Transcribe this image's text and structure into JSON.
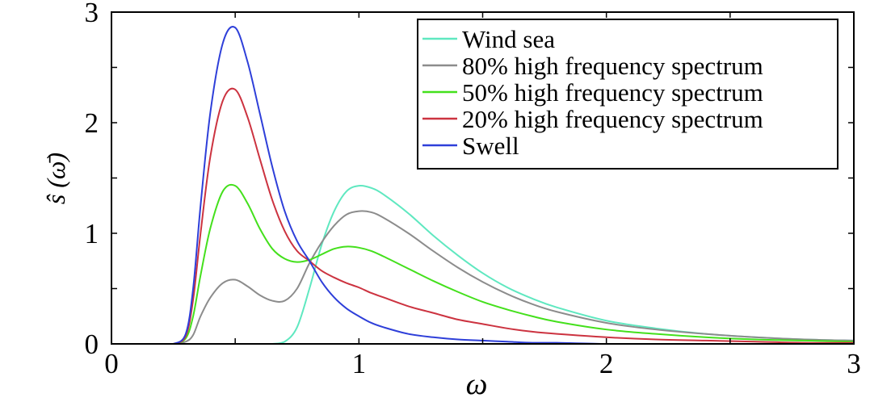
{
  "chart_data": {
    "type": "line",
    "title": "",
    "xlabel": "ω",
    "ylabel": "ŝ (ω̄)",
    "xlim": [
      0,
      3
    ],
    "ylim": [
      0,
      3
    ],
    "xticks": [
      0,
      1,
      2,
      3
    ],
    "yticks": [
      0,
      1,
      2,
      3
    ],
    "grid": false,
    "legend_position": "top-right",
    "x": [
      0,
      0.2,
      0.25,
      0.3,
      0.33,
      0.36,
      0.4,
      0.45,
      0.5,
      0.55,
      0.6,
      0.65,
      0.7,
      0.75,
      0.8,
      0.85,
      0.9,
      0.95,
      1.0,
      1.05,
      1.1,
      1.2,
      1.3,
      1.4,
      1.5,
      1.6,
      1.7,
      1.8,
      2.0,
      2.2,
      2.4,
      2.6,
      2.8,
      3.0
    ],
    "series": [
      {
        "name": "Wind sea",
        "color": "#5fe8c0",
        "values": [
          0,
          0,
          0,
          0,
          0,
          0,
          0,
          0,
          0,
          0,
          0,
          0,
          0.02,
          0.15,
          0.5,
          0.9,
          1.2,
          1.38,
          1.43,
          1.41,
          1.35,
          1.18,
          0.98,
          0.8,
          0.64,
          0.51,
          0.41,
          0.33,
          0.21,
          0.14,
          0.09,
          0.06,
          0.04,
          0.03
        ]
      },
      {
        "name": "80% high frequency spectrum",
        "color": "#8c8c8c",
        "values": [
          0,
          0,
          0,
          0.02,
          0.08,
          0.25,
          0.42,
          0.55,
          0.58,
          0.52,
          0.44,
          0.39,
          0.39,
          0.5,
          0.73,
          0.92,
          1.07,
          1.17,
          1.2,
          1.19,
          1.14,
          1.0,
          0.84,
          0.69,
          0.56,
          0.45,
          0.36,
          0.29,
          0.19,
          0.13,
          0.09,
          0.06,
          0.04,
          0.03
        ]
      },
      {
        "name": "50% high frequency spectrum",
        "color": "#44e01c",
        "values": [
          0,
          0,
          0,
          0.05,
          0.25,
          0.62,
          1.05,
          1.38,
          1.43,
          1.27,
          1.04,
          0.86,
          0.77,
          0.74,
          0.76,
          0.81,
          0.86,
          0.88,
          0.87,
          0.84,
          0.79,
          0.68,
          0.57,
          0.47,
          0.38,
          0.31,
          0.25,
          0.2,
          0.13,
          0.09,
          0.06,
          0.04,
          0.03,
          0.02
        ]
      },
      {
        "name": "20% high frequency spectrum",
        "color": "#cc3340",
        "values": [
          0,
          0,
          0,
          0.07,
          0.4,
          1.0,
          1.7,
          2.2,
          2.3,
          2.05,
          1.67,
          1.3,
          1.02,
          0.84,
          0.75,
          0.66,
          0.6,
          0.55,
          0.51,
          0.46,
          0.42,
          0.34,
          0.28,
          0.22,
          0.18,
          0.14,
          0.11,
          0.09,
          0.06,
          0.04,
          0.03,
          0.02,
          0.01,
          0.01
        ]
      },
      {
        "name": "Swell",
        "color": "#2e3fd9",
        "values": [
          0,
          0,
          0,
          0.09,
          0.5,
          1.25,
          2.1,
          2.72,
          2.86,
          2.55,
          2.08,
          1.6,
          1.2,
          0.93,
          0.75,
          0.56,
          0.42,
          0.32,
          0.25,
          0.19,
          0.15,
          0.09,
          0.06,
          0.04,
          0.03,
          0.02,
          0.01,
          0.01,
          0,
          0,
          0,
          0,
          0,
          0
        ]
      }
    ]
  }
}
